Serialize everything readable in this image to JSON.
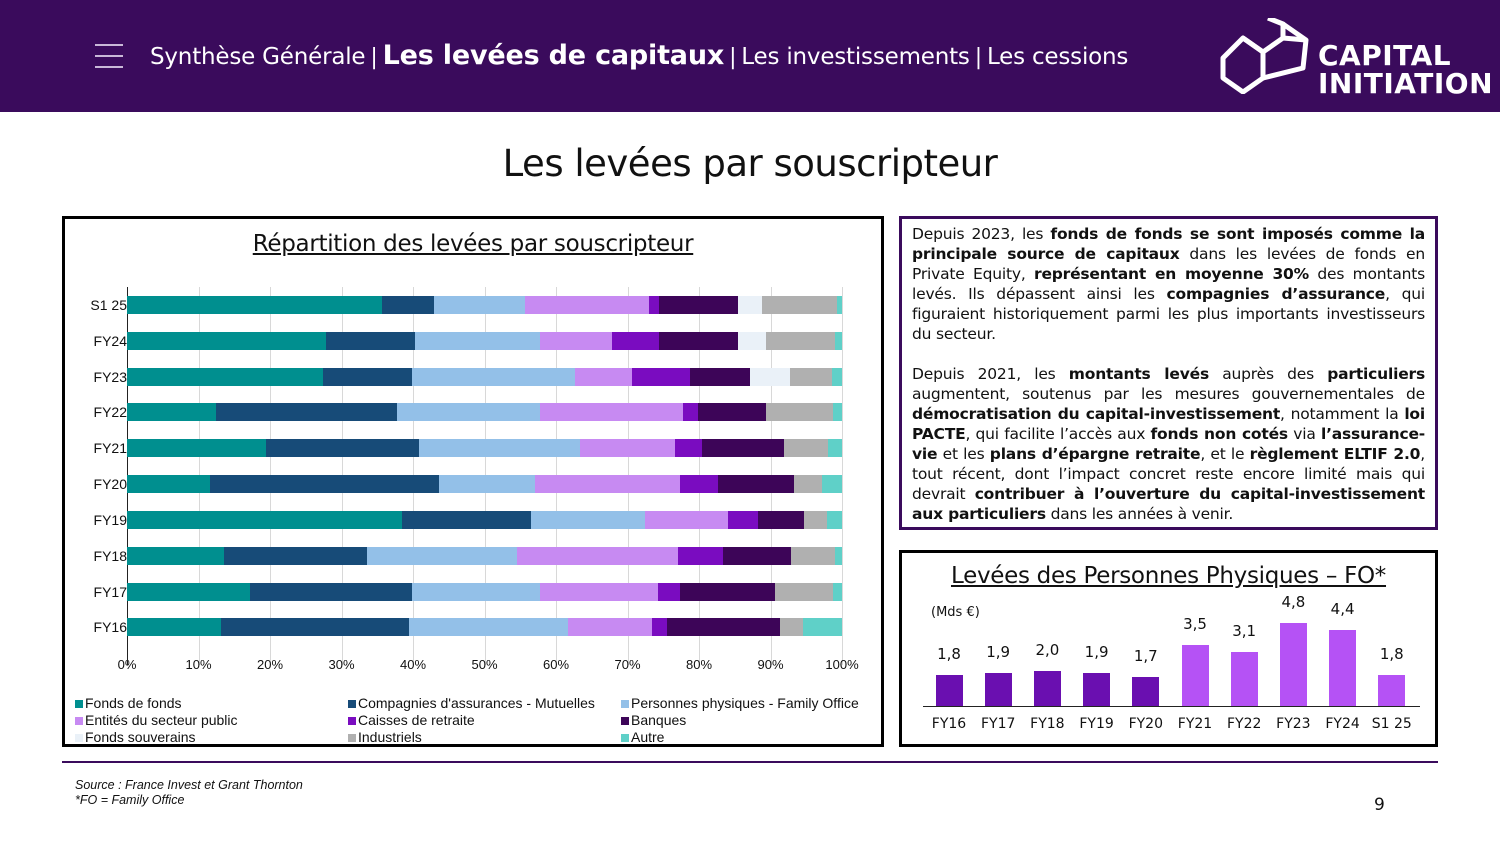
{
  "header": {
    "nav": [
      {
        "label": "Synthèse Générale",
        "active": false
      },
      {
        "label": "Les levées de capitaux",
        "active": true
      },
      {
        "label": "Les investissements",
        "active": false
      },
      {
        "label": "Les cessions",
        "active": false
      }
    ],
    "separator": "|",
    "logo": {
      "line1": "CAPITAL",
      "line2": "INITIATION"
    },
    "menu_icon": "hamburger-icon",
    "background": "#3a0b5c"
  },
  "page_title": "Les levées par souscripteur",
  "chart_data": [
    {
      "type": "bar",
      "orientation": "horizontal-stacked-100",
      "title": "Répartition des levées par souscripteur",
      "categories": [
        "S1 25",
        "FY24",
        "FY23",
        "FY22",
        "FY21",
        "FY20",
        "FY19",
        "FY18",
        "FY17",
        "FY16"
      ],
      "xlim": [
        0,
        100
      ],
      "xticks": [
        "0%",
        "10%",
        "20%",
        "30%",
        "40%",
        "50%",
        "60%",
        "70%",
        "80%",
        "90%",
        "100%"
      ],
      "grid": true,
      "legend_position": "bottom",
      "series": [
        {
          "name": "Fonds de fonds",
          "color": "#008f8f",
          "values": [
            35.6,
            27.8,
            27.4,
            12.5,
            19.4,
            11.6,
            38.4,
            13.6,
            17.2,
            13.2
          ]
        },
        {
          "name": "Compagnies d'assurances - Mutuelles",
          "color": "#174b78",
          "values": [
            7.3,
            12.5,
            12.5,
            25.2,
            21.4,
            32.1,
            18.1,
            20.0,
            22.6,
            26.2
          ]
        },
        {
          "name": "Personnes physiques - Family Office",
          "color": "#93c0e8",
          "values": [
            12.7,
            17.5,
            22.8,
            20.1,
            22.5,
            13.4,
            16.0,
            20.9,
            18.0,
            22.3
          ]
        },
        {
          "name": "Entités du secteur public",
          "color": "#c78af2",
          "values": [
            17.4,
            10.0,
            8.0,
            20.0,
            13.3,
            20.2,
            11.6,
            22.6,
            16.5,
            11.7
          ]
        },
        {
          "name": "Caisses de retraite",
          "color": "#7a0cc0",
          "values": [
            1.4,
            6.6,
            8.0,
            2.0,
            3.8,
            5.3,
            4.1,
            6.2,
            3.0,
            2.1
          ]
        },
        {
          "name": "Banques",
          "color": "#3d0558",
          "values": [
            11.1,
            11.1,
            8.5,
            9.6,
            11.5,
            10.7,
            6.5,
            9.6,
            13.3,
            15.9
          ]
        },
        {
          "name": "Fonds souverains",
          "color": "#eaf1f8",
          "values": [
            3.3,
            3.9,
            5.5,
            0,
            0,
            0,
            0,
            0,
            0,
            0
          ]
        },
        {
          "name": "Industriels",
          "color": "#b0b0b0",
          "values": [
            10.5,
            9.6,
            5.9,
            9.4,
            6.1,
            3.9,
            3.2,
            6.1,
            8.2,
            3.1
          ]
        },
        {
          "name": "Autre",
          "color": "#5fd0c8",
          "values": [
            0.7,
            1.0,
            1.4,
            1.2,
            2.0,
            2.8,
            2.1,
            1.0,
            1.2,
            5.5
          ]
        }
      ]
    },
    {
      "type": "bar",
      "title": "Levées des Personnes Physiques – FO*",
      "ylabel": "(Mds €)",
      "categories": [
        "FY16",
        "FY17",
        "FY18",
        "FY19",
        "FY20",
        "FY21",
        "FY22",
        "FY23",
        "FY24",
        "S1 25"
      ],
      "values": [
        1.8,
        1.9,
        2.0,
        1.9,
        1.7,
        3.5,
        3.1,
        4.8,
        4.4,
        1.8
      ],
      "labels": [
        "1,8",
        "1,9",
        "2,0",
        "1,9",
        "1,7",
        "3,5",
        "3,1",
        "4,8",
        "4,4",
        "1,8"
      ],
      "colors": [
        "#6a0fb0",
        "#6a0fb0",
        "#6a0fb0",
        "#6a0fb0",
        "#6a0fb0",
        "#b552f5",
        "#b552f5",
        "#b552f5",
        "#b552f5",
        "#b552f5"
      ],
      "grid": false
    }
  ],
  "text_panel": {
    "paragraphs": [
      [
        {
          "t": "Depuis 2023, les ",
          "b": false
        },
        {
          "t": "fonds de fonds se sont imposés comme la principale source de capitaux",
          "b": true
        },
        {
          "t": " dans les levées de fonds en Private Equity, ",
          "b": false
        },
        {
          "t": "représentant en moyenne 30%",
          "b": true
        },
        {
          "t": " des montants levés. Ils dépassent ainsi les ",
          "b": false
        },
        {
          "t": "compagnies d’assurance",
          "b": true
        },
        {
          "t": ", qui figuraient historiquement parmi les plus importants investisseurs du secteur.",
          "b": false
        }
      ],
      [
        {
          "t": "Depuis 2021, les ",
          "b": false
        },
        {
          "t": "montants levés",
          "b": true
        },
        {
          "t": " auprès des ",
          "b": false
        },
        {
          "t": "particuliers",
          "b": true
        },
        {
          "t": " augmentent, soutenus par les mesures gouvernementales de ",
          "b": false
        },
        {
          "t": "démocratisation du capital-investissement",
          "b": true
        },
        {
          "t": ", notamment la ",
          "b": false
        },
        {
          "t": "loi PACTE",
          "b": true
        },
        {
          "t": ", qui facilite l’accès aux ",
          "b": false
        },
        {
          "t": "fonds non cotés",
          "b": true
        },
        {
          "t": " via ",
          "b": false
        },
        {
          "t": "l’assurance-vie",
          "b": true
        },
        {
          "t": " et les ",
          "b": false
        },
        {
          "t": "plans d’épargne retraite",
          "b": true
        },
        {
          "t": ", et le ",
          "b": false
        },
        {
          "t": "règlement ELTIF 2.0",
          "b": true
        },
        {
          "t": ", tout récent, dont l’impact concret reste encore limité mais qui devrait ",
          "b": false
        },
        {
          "t": "contribuer à l’ouverture du capital-investissement aux particuliers",
          "b": true
        },
        {
          "t": " dans les années à venir.",
          "b": false
        }
      ]
    ]
  },
  "footer": {
    "source": "Source : France Invest et Grant Thornton",
    "note": "*FO = Family Office",
    "page_number": "9"
  }
}
